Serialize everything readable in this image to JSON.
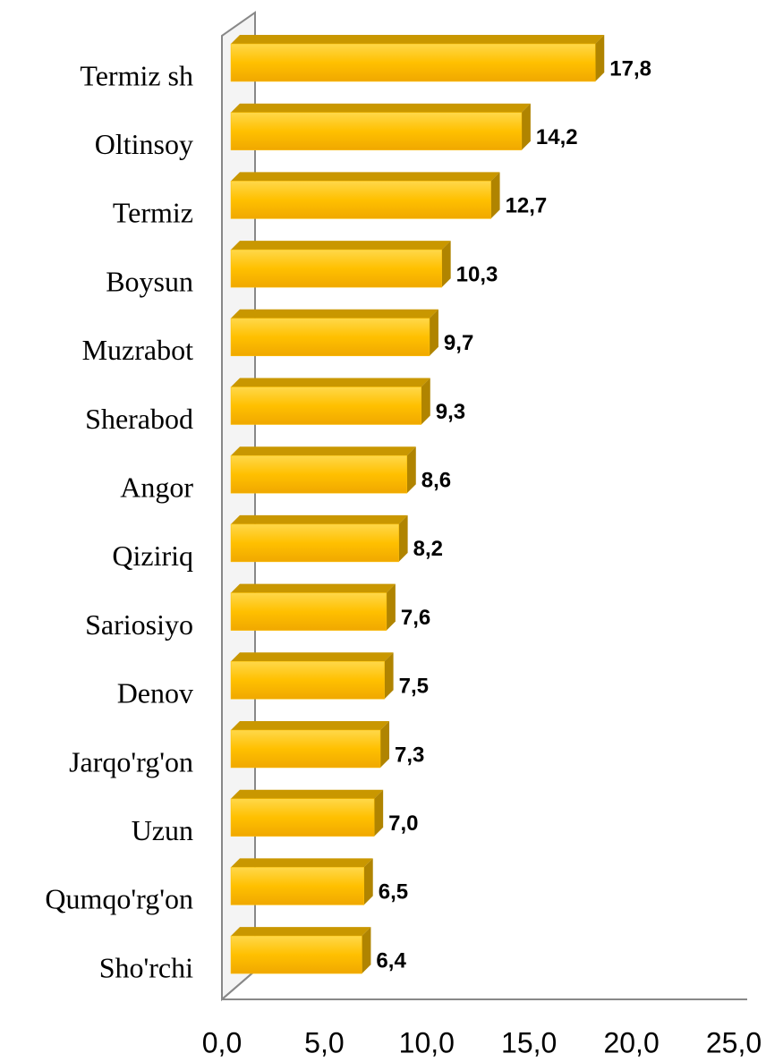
{
  "chart_data": {
    "type": "bar",
    "orientation": "horizontal",
    "categories": [
      "Termiz sh",
      "Oltinsoy",
      "Termiz",
      "Boysun",
      "Muzrabot",
      "Sherabod",
      "Angor",
      "Qiziriq",
      "Sariosiyo",
      "Denov",
      "Jarqo'rg'on",
      "Uzun",
      "Qumqo'rg'on",
      "Sho'rchi"
    ],
    "values": [
      17.8,
      14.2,
      12.7,
      10.3,
      9.7,
      9.3,
      8.6,
      8.2,
      7.6,
      7.5,
      7.3,
      7.0,
      6.5,
      6.4
    ],
    "value_labels": [
      "17,8",
      "14,2",
      "12,7",
      "10,3",
      "9,7",
      "9,3",
      "8,6",
      "8,2",
      "7,6",
      "7,5",
      "7,3",
      "7,0",
      "6,5",
      "6,4"
    ],
    "color": "#FFC000",
    "xlim": [
      0,
      25
    ],
    "xticks": [
      {
        "value": 0,
        "label": "0,0"
      },
      {
        "value": 5,
        "label": "5,0"
      },
      {
        "value": 10,
        "label": "10,0"
      },
      {
        "value": 15,
        "label": "15,0"
      },
      {
        "value": 20,
        "label": "20,0"
      },
      {
        "value": 25,
        "label": "25,0"
      }
    ],
    "grid": false
  }
}
